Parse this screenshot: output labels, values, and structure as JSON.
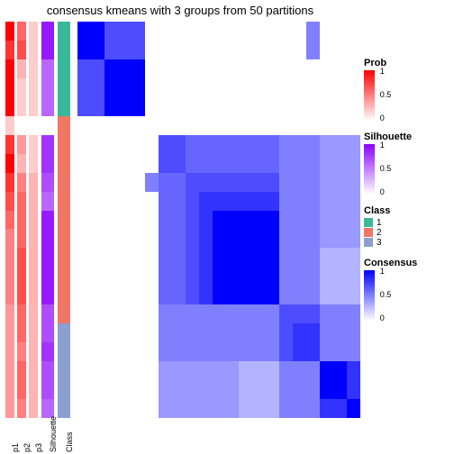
{
  "title": "consensus kmeans with 3 groups from 50 partitions",
  "layout": {
    "n_rows": 21,
    "colors": {
      "background": "#ffffff",
      "text": "#000000",
      "consensus_low": "#ffffff",
      "consensus_high": "#0000ff",
      "silhouette_low": "#ffffff",
      "silhouette_high": "#8b00ff",
      "prob_low": "#ffffff",
      "prob_high": "#ff0000",
      "class1": "#39b89a",
      "class2": "#f07763",
      "class3": "#8b9fd1"
    }
  },
  "annot_labels": [
    "p1",
    "p2",
    "p3",
    "Silhouette",
    "Class"
  ],
  "annot_cols": {
    "p1": [
      1.0,
      0.8,
      1.0,
      1.0,
      1.0,
      0.2,
      0.8,
      1.0,
      0.8,
      0.7,
      0.6,
      0.5,
      0.5,
      0.5,
      0.5,
      0.4,
      0.4,
      0.4,
      0.4,
      0.4,
      0.4
    ],
    "p2": [
      0.6,
      0.7,
      0.3,
      0.2,
      0.2,
      0.0,
      0.4,
      0.3,
      0.5,
      0.6,
      0.6,
      0.6,
      0.7,
      0.7,
      0.7,
      0.6,
      0.6,
      0.5,
      0.6,
      0.6,
      0.5
    ],
    "p3": [
      0.2,
      0.2,
      0.2,
      0.2,
      0.2,
      0.0,
      0.2,
      0.2,
      0.3,
      0.3,
      0.3,
      0.3,
      0.3,
      0.3,
      0.3,
      0.3,
      0.3,
      0.3,
      0.3,
      0.3,
      0.3
    ],
    "silhouette": [
      0.9,
      0.9,
      0.6,
      0.6,
      0.6,
      0.0,
      0.8,
      0.8,
      0.7,
      0.6,
      0.9,
      0.9,
      0.9,
      0.9,
      0.9,
      0.7,
      0.7,
      0.8,
      0.7,
      0.7,
      0.6
    ],
    "class": [
      1,
      1,
      1,
      1,
      1,
      2,
      2,
      2,
      2,
      2,
      2,
      2,
      2,
      2,
      2,
      2,
      3,
      3,
      3,
      3,
      3
    ]
  },
  "heatmap_rows": [
    [
      1.0,
      1.0,
      0.7,
      0.7,
      0.7,
      0.0,
      0.0,
      0.0,
      0.0,
      0.0,
      0.0,
      0.0,
      0.0,
      0.0,
      0.0,
      0.0,
      0.0,
      0.5,
      0.0,
      0.0,
      0.0
    ],
    [
      1.0,
      1.0,
      0.7,
      0.7,
      0.7,
      0.0,
      0.0,
      0.0,
      0.0,
      0.0,
      0.0,
      0.0,
      0.0,
      0.0,
      0.0,
      0.0,
      0.0,
      0.5,
      0.0,
      0.0,
      0.0
    ],
    [
      0.7,
      0.7,
      1.0,
      1.0,
      1.0,
      0.0,
      0.0,
      0.0,
      0.0,
      0.0,
      0.0,
      0.0,
      0.0,
      0.0,
      0.0,
      0.0,
      0.0,
      0.0,
      0.0,
      0.0,
      0.0
    ],
    [
      0.7,
      0.7,
      1.0,
      1.0,
      1.0,
      0.0,
      0.0,
      0.0,
      0.0,
      0.0,
      0.0,
      0.0,
      0.0,
      0.0,
      0.0,
      0.0,
      0.0,
      0.0,
      0.0,
      0.0,
      0.0
    ],
    [
      0.7,
      0.7,
      1.0,
      1.0,
      1.0,
      0.0,
      0.0,
      0.0,
      0.0,
      0.0,
      0.0,
      0.0,
      0.0,
      0.0,
      0.0,
      0.0,
      0.0,
      0.0,
      0.0,
      0.0,
      0.0
    ],
    [
      0.0,
      0.0,
      0.0,
      0.0,
      0.0,
      0.0,
      0.0,
      0.0,
      0.0,
      0.0,
      0.0,
      0.0,
      0.0,
      0.0,
      0.0,
      0.0,
      0.0,
      0.0,
      0.0,
      0.0,
      0.0
    ],
    [
      0.0,
      0.0,
      0.0,
      0.0,
      0.0,
      0.0,
      0.7,
      0.7,
      0.6,
      0.6,
      0.6,
      0.6,
      0.6,
      0.6,
      0.6,
      0.5,
      0.5,
      0.5,
      0.4,
      0.4,
      0.4
    ],
    [
      0.0,
      0.0,
      0.0,
      0.0,
      0.0,
      0.0,
      0.7,
      0.7,
      0.6,
      0.6,
      0.6,
      0.6,
      0.6,
      0.6,
      0.6,
      0.5,
      0.5,
      0.5,
      0.4,
      0.4,
      0.4
    ],
    [
      0.0,
      0.0,
      0.0,
      0.0,
      0.0,
      0.5,
      0.6,
      0.6,
      0.7,
      0.7,
      0.7,
      0.7,
      0.7,
      0.7,
      0.7,
      0.5,
      0.5,
      0.5,
      0.4,
      0.4,
      0.4
    ],
    [
      0.0,
      0.0,
      0.0,
      0.0,
      0.0,
      0.0,
      0.6,
      0.6,
      0.7,
      0.8,
      0.8,
      0.8,
      0.8,
      0.8,
      0.8,
      0.5,
      0.5,
      0.5,
      0.4,
      0.4,
      0.4
    ],
    [
      0.0,
      0.0,
      0.0,
      0.0,
      0.0,
      0.0,
      0.6,
      0.6,
      0.7,
      0.8,
      1.0,
      1.0,
      1.0,
      1.0,
      1.0,
      0.5,
      0.5,
      0.5,
      0.4,
      0.4,
      0.4
    ],
    [
      0.0,
      0.0,
      0.0,
      0.0,
      0.0,
      0.0,
      0.6,
      0.6,
      0.7,
      0.8,
      1.0,
      1.0,
      1.0,
      1.0,
      1.0,
      0.5,
      0.5,
      0.5,
      0.4,
      0.4,
      0.4
    ],
    [
      0.0,
      0.0,
      0.0,
      0.0,
      0.0,
      0.0,
      0.6,
      0.6,
      0.7,
      0.8,
      1.0,
      1.0,
      1.0,
      1.0,
      1.0,
      0.5,
      0.5,
      0.5,
      0.3,
      0.3,
      0.3
    ],
    [
      0.0,
      0.0,
      0.0,
      0.0,
      0.0,
      0.0,
      0.6,
      0.6,
      0.7,
      0.8,
      1.0,
      1.0,
      1.0,
      1.0,
      1.0,
      0.5,
      0.5,
      0.5,
      0.3,
      0.3,
      0.3
    ],
    [
      0.0,
      0.0,
      0.0,
      0.0,
      0.0,
      0.0,
      0.6,
      0.6,
      0.7,
      0.8,
      1.0,
      1.0,
      1.0,
      1.0,
      1.0,
      0.5,
      0.5,
      0.5,
      0.3,
      0.3,
      0.3
    ],
    [
      0.0,
      0.0,
      0.0,
      0.0,
      0.0,
      0.0,
      0.5,
      0.5,
      0.5,
      0.5,
      0.5,
      0.5,
      0.5,
      0.5,
      0.5,
      0.7,
      0.7,
      0.7,
      0.5,
      0.5,
      0.5
    ],
    [
      0.0,
      0.0,
      0.0,
      0.0,
      0.0,
      0.0,
      0.5,
      0.5,
      0.5,
      0.5,
      0.5,
      0.5,
      0.5,
      0.5,
      0.5,
      0.7,
      0.8,
      0.8,
      0.5,
      0.5,
      0.5
    ],
    [
      0.0,
      0.0,
      0.0,
      0.0,
      0.0,
      0.0,
      0.5,
      0.5,
      0.5,
      0.5,
      0.5,
      0.5,
      0.5,
      0.5,
      0.5,
      0.7,
      0.8,
      0.8,
      0.5,
      0.5,
      0.5
    ],
    [
      0.0,
      0.0,
      0.0,
      0.0,
      0.0,
      0.0,
      0.4,
      0.4,
      0.4,
      0.4,
      0.4,
      0.4,
      0.3,
      0.3,
      0.3,
      0.5,
      0.5,
      0.5,
      1.0,
      1.0,
      0.8
    ],
    [
      0.0,
      0.0,
      0.0,
      0.0,
      0.0,
      0.0,
      0.4,
      0.4,
      0.4,
      0.4,
      0.4,
      0.4,
      0.3,
      0.3,
      0.3,
      0.5,
      0.5,
      0.5,
      1.0,
      1.0,
      0.8
    ],
    [
      0.0,
      0.0,
      0.0,
      0.0,
      0.0,
      0.0,
      0.4,
      0.4,
      0.4,
      0.4,
      0.4,
      0.4,
      0.3,
      0.3,
      0.3,
      0.5,
      0.5,
      0.5,
      0.8,
      0.8,
      1.0
    ]
  ],
  "legends": {
    "prob": {
      "title": "Prob",
      "ticks": [
        "1",
        "0.5",
        "0"
      ],
      "low": "#ffffff",
      "high": "#ff0000"
    },
    "silhouette": {
      "title": "Silhouette",
      "ticks": [
        "1",
        "0.5",
        "0"
      ],
      "low": "#ffffff",
      "high": "#8b00ff"
    },
    "class": {
      "title": "Class",
      "items": [
        {
          "label": "1",
          "color": "#39b89a"
        },
        {
          "label": "2",
          "color": "#f07763"
        },
        {
          "label": "3",
          "color": "#8b9fd1"
        }
      ]
    },
    "consensus": {
      "title": "Consensus",
      "ticks": [
        "1",
        "0.5",
        "0"
      ],
      "low": "#ffffff",
      "high": "#0000ff"
    }
  }
}
